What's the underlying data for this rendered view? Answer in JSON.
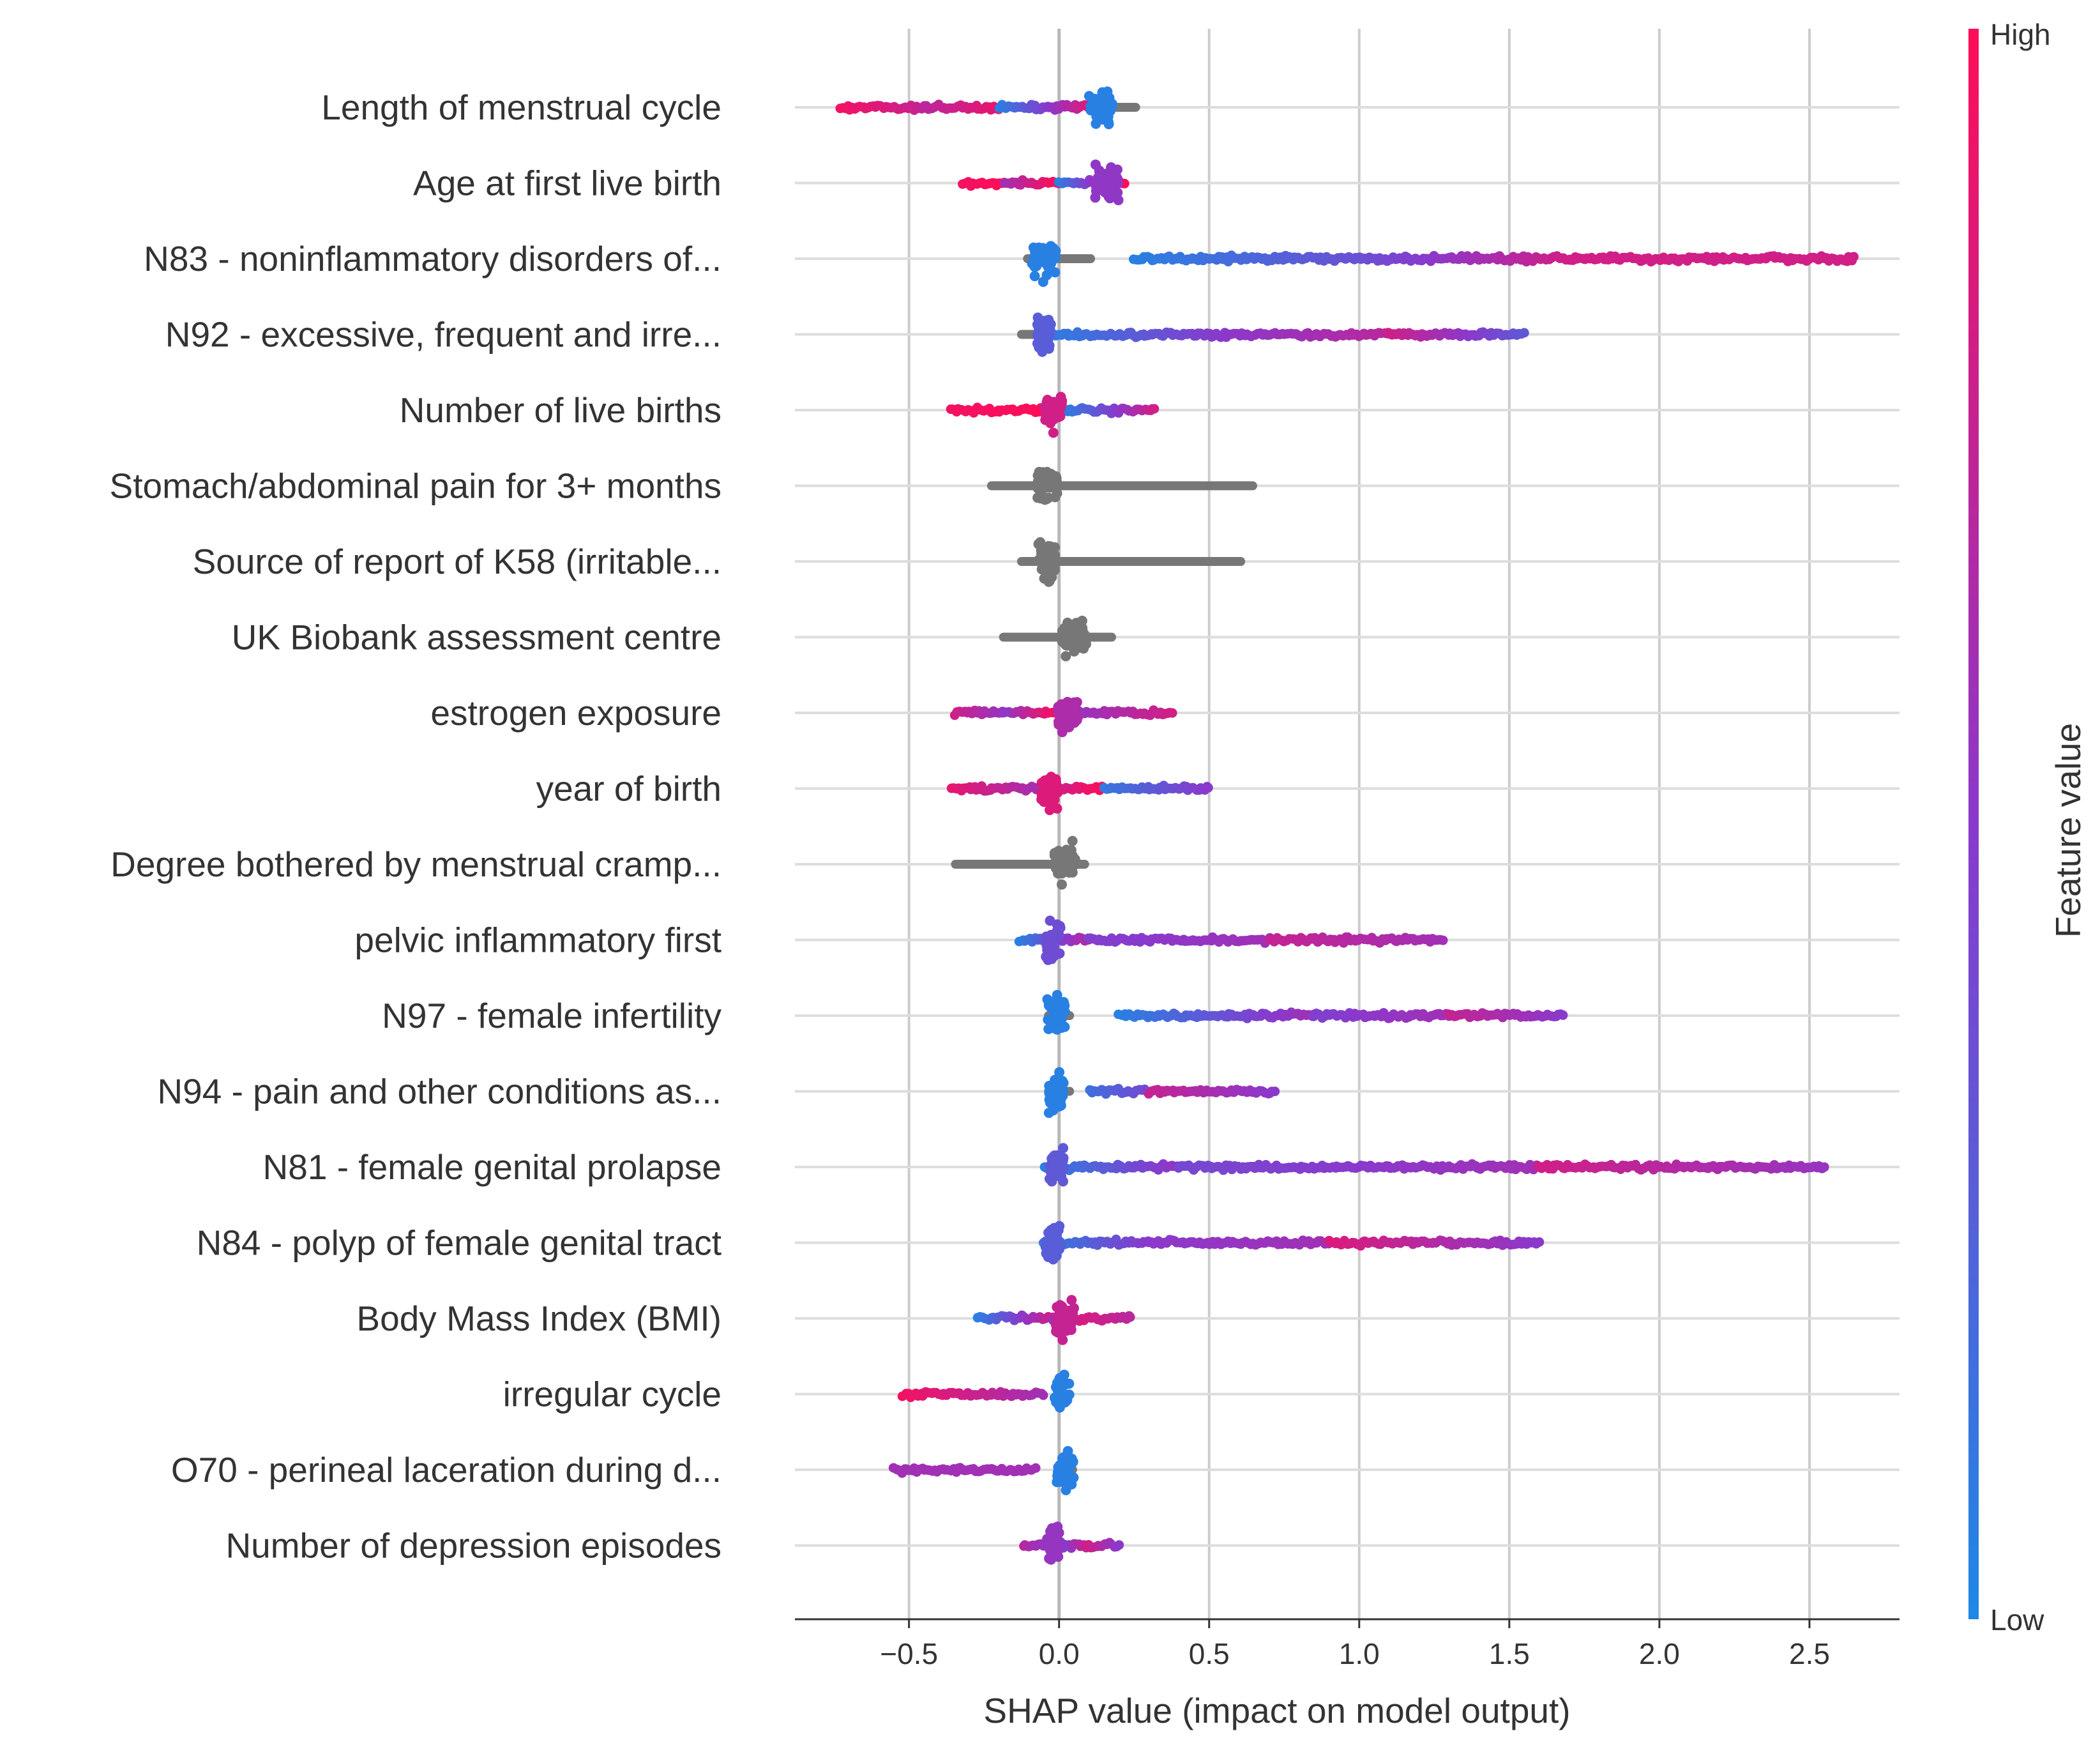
{
  "colors": {
    "low": "#1e88e5",
    "high": "#ff0d57",
    "missing": "#777777",
    "grid": "#cccccc",
    "text": "#333333"
  },
  "chart_data": {
    "type": "scatter",
    "subtype": "shap-beeswarm-summary",
    "xlabel": "SHAP value (impact on model output)",
    "xlim": [
      -0.88,
      2.8
    ],
    "xticks": [
      -0.5,
      0.0,
      0.5,
      1.0,
      1.5,
      2.0,
      2.5
    ],
    "xtick_labels": [
      "−0.5",
      "0.0",
      "0.5",
      "1.0",
      "1.5",
      "2.0",
      "2.5"
    ],
    "colorbar": {
      "title": "Feature value",
      "high_label": "High",
      "low_label": "Low"
    },
    "features": [
      {
        "name": "Length of menstrual cycle",
        "segments": [
          [
            -0.73,
            -0.45,
            0.95,
            0.75
          ],
          [
            -0.45,
            -0.2,
            0.7,
            0.9
          ],
          [
            -0.2,
            0.12,
            0.05,
            0.9
          ]
        ],
        "gray": [
          0.1,
          0.27
        ],
        "dense_at": 0.14,
        "dense_halfwidth": 0.04
      },
      {
        "name": "Age at first live birth",
        "segments": [
          [
            -0.32,
            -0.18,
            0.95,
            1.0
          ],
          [
            -0.18,
            0.0,
            0.6,
            1.0
          ],
          [
            0.0,
            0.22,
            0.05,
            1.0
          ]
        ],
        "gray": null,
        "dense_at": 0.16,
        "dense_halfwidth": 0.04
      },
      {
        "name": "N83 - noninflammatory disorders of...",
        "segments": [
          [
            0.25,
            1.0,
            0.05,
            0.35
          ],
          [
            1.0,
            1.7,
            0.35,
            0.8
          ],
          [
            1.7,
            2.65,
            0.8,
            0.8
          ]
        ],
        "gray": [
          -0.12,
          0.12
        ],
        "dense_at": -0.05,
        "dense_halfwidth": 0.04
      },
      {
        "name": "N92 - excessive, frequent and irre...",
        "segments": [
          [
            -0.05,
            0.55,
            0.05,
            0.5
          ],
          [
            0.55,
            1.1,
            0.5,
            0.7
          ],
          [
            1.1,
            1.55,
            0.8,
            0.3
          ]
        ],
        "gray": [
          -0.14,
          0.0
        ],
        "dense_at": -0.05,
        "dense_halfwidth": 0.025
      },
      {
        "name": "Number of live births",
        "segments": [
          [
            -0.36,
            -0.05,
            0.95,
            1.0
          ],
          [
            -0.05,
            0.02,
            0.6,
            1.0
          ],
          [
            0.02,
            0.32,
            0.05,
            0.8
          ]
        ],
        "gray": null,
        "dense_at": -0.02,
        "dense_halfwidth": 0.03
      },
      {
        "name": "Stomach/abdominal pain for 3+ months",
        "segments": [],
        "gray": [
          -0.24,
          0.66
        ],
        "dense_at": -0.04,
        "dense_halfwidth": 0.035
      },
      {
        "name": "Source of report of K58 (irritable...",
        "segments": [],
        "gray": [
          -0.14,
          0.62
        ],
        "dense_at": -0.04,
        "dense_halfwidth": 0.03
      },
      {
        "name": "UK Biobank assessment centre",
        "segments": [],
        "gray": [
          -0.2,
          0.19
        ],
        "dense_at": 0.05,
        "dense_halfwidth": 0.04
      },
      {
        "name": "estrogen exposure",
        "segments": [
          [
            -0.35,
            -0.15,
            0.8,
            0.5
          ],
          [
            -0.15,
            0.0,
            0.6,
            1.0
          ],
          [
            0.0,
            0.38,
            0.5,
            0.8
          ]
        ],
        "gray": null,
        "dense_at": 0.03,
        "dense_halfwidth": 0.035
      },
      {
        "name": "year of birth",
        "segments": [
          [
            -0.36,
            -0.05,
            0.9,
            0.6
          ],
          [
            -0.05,
            0.15,
            0.7,
            1.0
          ],
          [
            0.15,
            0.5,
            0.1,
            0.5
          ]
        ],
        "gray": null,
        "dense_at": -0.03,
        "dense_halfwidth": 0.03
      },
      {
        "name": "Degree bothered by menstrual cramp...",
        "segments": [],
        "gray": [
          -0.36,
          0.1
        ],
        "dense_at": 0.02,
        "dense_halfwidth": 0.035
      },
      {
        "name": "pelvic inflammatory first",
        "segments": [
          [
            -0.13,
            0.1,
            0.05,
            0.7
          ],
          [
            0.1,
            0.7,
            0.45,
            0.6
          ],
          [
            0.7,
            1.28,
            0.75,
            0.6
          ]
        ],
        "gray": null,
        "dense_at": -0.02,
        "dense_halfwidth": 0.025
      },
      {
        "name": "N97 - female infertility",
        "segments": [
          [
            0.2,
            0.85,
            0.05,
            0.6
          ],
          [
            0.85,
            1.3,
            0.45,
            0.6
          ],
          [
            1.3,
            1.68,
            0.75,
            0.5
          ]
        ],
        "gray": [
          -0.05,
          0.05
        ],
        "dense_at": -0.01,
        "dense_halfwidth": 0.03
      },
      {
        "name": "N94 - pain and other conditions as...",
        "segments": [
          [
            0.1,
            0.3,
            0.15,
            0.4
          ],
          [
            0.3,
            0.72,
            0.75,
            0.5
          ]
        ],
        "gray": [
          -0.05,
          0.05
        ],
        "dense_at": -0.01,
        "dense_halfwidth": 0.025
      },
      {
        "name": "N81 - female genital prolapse",
        "segments": [
          [
            -0.05,
            0.4,
            0.05,
            0.55
          ],
          [
            0.4,
            1.6,
            0.4,
            0.6
          ],
          [
            1.6,
            2.55,
            0.8,
            0.55
          ]
        ],
        "gray": [
          -0.05,
          0.03
        ],
        "dense_at": -0.01,
        "dense_halfwidth": 0.025
      },
      {
        "name": "N84 - polyp of female genital tract",
        "segments": [
          [
            -0.05,
            0.3,
            0.05,
            0.5
          ],
          [
            0.3,
            0.9,
            0.5,
            0.6
          ],
          [
            0.9,
            1.6,
            0.85,
            0.5
          ]
        ],
        "gray": [
          -0.05,
          0.02
        ],
        "dense_at": -0.02,
        "dense_halfwidth": 0.025
      },
      {
        "name": "Body Mass Index (BMI)",
        "segments": [
          [
            -0.27,
            -0.02,
            0.05,
            0.8
          ],
          [
            -0.02,
            0.05,
            0.5,
            1.0
          ],
          [
            0.05,
            0.24,
            0.85,
            0.7
          ]
        ],
        "gray": null,
        "dense_at": 0.02,
        "dense_halfwidth": 0.03
      },
      {
        "name": "irregular cycle",
        "segments": [
          [
            -0.52,
            -0.05,
            0.95,
            0.6
          ]
        ],
        "gray": null,
        "dense_at": 0.01,
        "dense_halfwidth": 0.025
      },
      {
        "name": "O70 - perineal laceration during d...",
        "segments": [
          [
            -0.55,
            -0.08,
            0.6,
            0.6
          ]
        ],
        "gray": [
          -0.01,
          0.06
        ],
        "dense_at": 0.02,
        "dense_halfwidth": 0.03
      },
      {
        "name": "Number of depression episodes",
        "segments": [
          [
            -0.12,
            -0.02,
            0.7,
            0.5
          ],
          [
            -0.02,
            0.1,
            0.3,
            0.8
          ],
          [
            0.1,
            0.2,
            0.8,
            0.5
          ]
        ],
        "gray": null,
        "dense_at": -0.02,
        "dense_halfwidth": 0.02
      }
    ]
  }
}
